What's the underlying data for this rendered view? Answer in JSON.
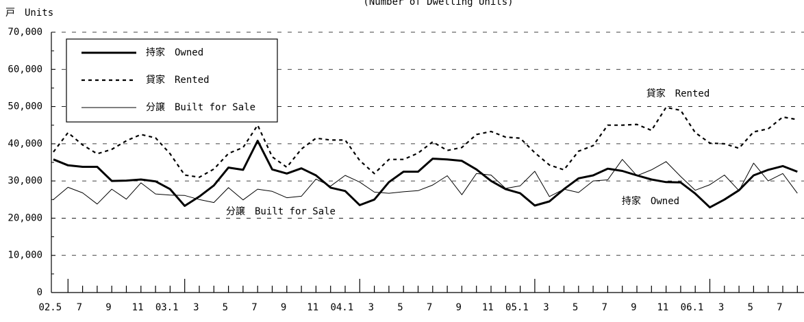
{
  "chart_data": {
    "type": "line",
    "title": "(Number of Dwelling Units)",
    "y_label": "戸　Units",
    "categories": [
      null,
      "02.5",
      null,
      "7",
      null,
      "9",
      null,
      "11",
      null,
      "03.1",
      null,
      "3",
      null,
      "5",
      null,
      "7",
      null,
      "9",
      null,
      "11",
      null,
      "04.1",
      null,
      "3",
      null,
      "5",
      null,
      "7",
      null,
      "9",
      null,
      "11",
      null,
      "05.1",
      null,
      "3",
      null,
      "5",
      null,
      "7",
      null,
      "9",
      null,
      "11",
      null,
      "06.1",
      null,
      "3",
      null,
      "5",
      null,
      "7"
    ],
    "series": [
      {
        "name": "持家　Owned",
        "color": "#000000",
        "style": "solid",
        "weight": "thick",
        "values": [
          35800,
          34200,
          33800,
          33800,
          30000,
          30100,
          30400,
          29900,
          27800,
          23300,
          25800,
          28800,
          33600,
          33000,
          40800,
          33100,
          32000,
          33400,
          31500,
          28200,
          27300,
          23500,
          25000,
          29700,
          32500,
          32500,
          36000,
          35800,
          35400,
          33100,
          30000,
          27800,
          26700,
          23400,
          24500,
          27800,
          30700,
          31500,
          33300,
          32700,
          31500,
          30400,
          29700,
          29600,
          26600,
          22900,
          25000,
          27500,
          31500,
          33000,
          34000,
          32500
        ]
      },
      {
        "name": "貸家　Rented",
        "color": "#000000",
        "style": "dashed",
        "weight": "medium",
        "values": [
          37800,
          43000,
          39700,
          37300,
          38500,
          40800,
          42500,
          41600,
          37300,
          31600,
          31000,
          33200,
          37400,
          39000,
          45000,
          36500,
          33700,
          38600,
          41500,
          41000,
          41000,
          35500,
          32000,
          35800,
          35800,
          37500,
          40500,
          38200,
          39000,
          42500,
          43300,
          41800,
          41500,
          37600,
          34300,
          33000,
          38000,
          39500,
          45000,
          45000,
          45200,
          43600,
          49800,
          49000,
          43000,
          40200,
          40000,
          38800,
          43200,
          44000,
          47200,
          46500
        ]
      },
      {
        "name": "分譲　Built for Sale",
        "color": "#000000",
        "style": "solid",
        "weight": "thin",
        "values": [
          25000,
          28300,
          26800,
          23800,
          27800,
          25100,
          29500,
          26500,
          26200,
          26100,
          25000,
          24200,
          28200,
          24900,
          27800,
          27200,
          25500,
          25900,
          30500,
          28600,
          31500,
          29700,
          27000,
          26700,
          27100,
          27400,
          28900,
          31400,
          26300,
          32000,
          31600,
          28000,
          28700,
          32600,
          25800,
          27800,
          26900,
          30000,
          30300,
          35800,
          31400,
          33000,
          35200,
          31200,
          27500,
          29000,
          31600,
          27400,
          34800,
          30000,
          32000,
          26700
        ]
      }
    ],
    "annotations": [
      {
        "text": "貸家　Rented",
        "series": 1
      },
      {
        "text": "持家　Owned",
        "series": 0
      },
      {
        "text": "分譲　Built for Sale",
        "series": 2
      }
    ],
    "ylim": [
      0,
      70000
    ],
    "yticks": [
      0,
      {
        "value": 10000,
        "label": "10,000"
      },
      {
        "value": 20000,
        "label": "20,000"
      },
      {
        "value": 30000,
        "label": "30,000"
      },
      {
        "value": 40000,
        "label": "40,000"
      },
      {
        "value": 50000,
        "label": "50,000"
      },
      {
        "value": 60000,
        "label": "60,000"
      },
      {
        "value": 70000,
        "label": "70,000"
      }
    ],
    "grid": true,
    "legend": "upper left"
  }
}
